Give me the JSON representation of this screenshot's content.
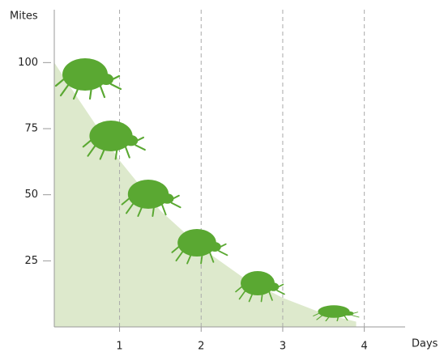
{
  "chart_data": {
    "type": "area",
    "y_label": "Mites",
    "x_label": "Days",
    "x": [
      0.2,
      0.5,
      1,
      1.5,
      2,
      2.5,
      3,
      3.5,
      3.9
    ],
    "values": [
      100,
      86,
      63,
      44,
      30,
      19,
      11,
      5,
      2
    ],
    "color": "#dde9cc",
    "xlim": [
      0.2,
      4.5
    ],
    "ylim": [
      0,
      120
    ],
    "xticks": [
      1,
      2,
      3,
      4
    ],
    "yticks": [
      25,
      50,
      75,
      100
    ],
    "grid": true
  }
}
